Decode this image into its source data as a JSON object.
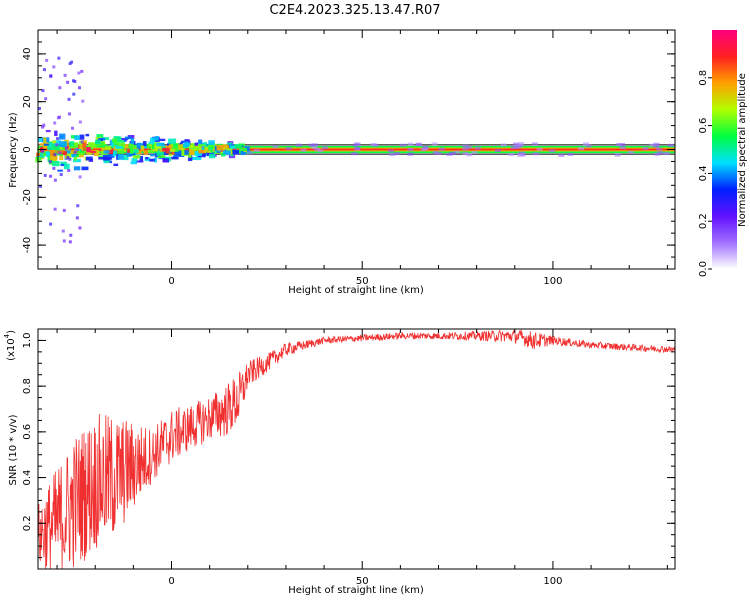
{
  "figure": {
    "title": "C2E4.2023.325.13.47.R07"
  },
  "chart_data": [
    {
      "type": "heatmap",
      "name": "spectrogram",
      "xlabel": "Height of straight line (km)",
      "ylabel": "Frequency (Hz)",
      "xlim": [
        -35,
        132
      ],
      "ylim": [
        -50,
        50
      ],
      "x_ticks": [
        0,
        50,
        100
      ],
      "y_ticks": [
        -40,
        -20,
        0,
        20,
        40
      ],
      "grid": false,
      "colorbar": {
        "label": "Normalized spectral amplitude",
        "ticks": [
          0.0,
          0.2,
          0.4,
          0.6,
          0.8
        ],
        "range": [
          0,
          1
        ],
        "colormap": [
          "#ffffff",
          "#a070ff",
          "#6010ff",
          "#0020ff",
          "#00e0ff",
          "#00ff40",
          "#b0ff00",
          "#ffa000",
          "#ff2020",
          "#ff0080"
        ]
      },
      "line_frequency_hz": 0,
      "band_halfwidth_hz": 1.5,
      "noisy_region_km": [
        -35,
        20
      ],
      "noise_spread_hz": 8
    },
    {
      "type": "line",
      "name": "snr",
      "xlabel": "Height of straight line (km)",
      "ylabel": "SNR (10 * v/v)",
      "y_multiplier_label": "(x10",
      "y_multiplier_exp": "4",
      "y_multiplier_close": ")",
      "xlim": [
        -35,
        132
      ],
      "ylim": [
        0,
        1.05
      ],
      "x_ticks": [
        0,
        50,
        100
      ],
      "y_ticks": [
        0.2,
        0.4,
        0.6,
        0.8,
        1.0
      ],
      "grid": false,
      "color": "#f03030",
      "envelope": {
        "x": [
          -35,
          -30,
          -25,
          -20,
          -15,
          -10,
          -5,
          0,
          5,
          10,
          15,
          18,
          20,
          25,
          30,
          35,
          40,
          50,
          60,
          70,
          80,
          90,
          95,
          100,
          110,
          120,
          132
        ],
        "mid": [
          0.15,
          0.2,
          0.3,
          0.38,
          0.4,
          0.45,
          0.5,
          0.58,
          0.62,
          0.66,
          0.7,
          0.75,
          0.85,
          0.9,
          0.96,
          0.98,
          1.0,
          1.01,
          1.02,
          1.02,
          1.02,
          1.02,
          1.0,
          1.0,
          0.98,
          0.97,
          0.96
        ],
        "amp": [
          0.15,
          0.25,
          0.3,
          0.3,
          0.28,
          0.2,
          0.12,
          0.12,
          0.1,
          0.1,
          0.12,
          0.12,
          0.06,
          0.04,
          0.03,
          0.02,
          0.015,
          0.015,
          0.015,
          0.015,
          0.02,
          0.03,
          0.04,
          0.02,
          0.015,
          0.015,
          0.015
        ]
      }
    }
  ]
}
